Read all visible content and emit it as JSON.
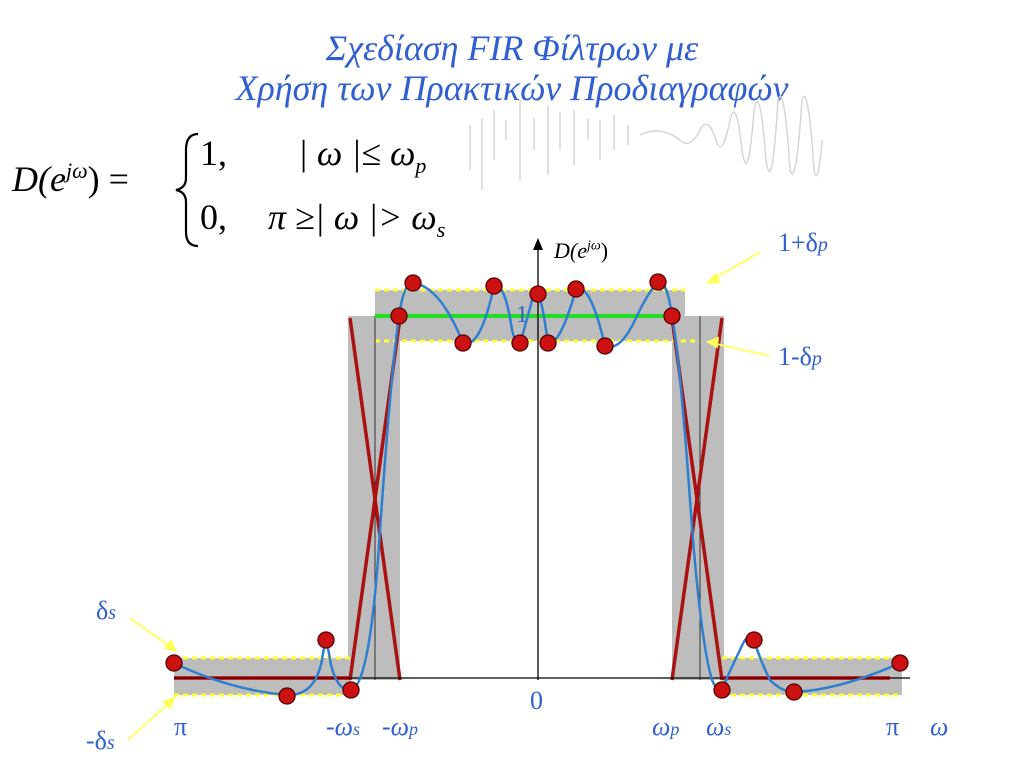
{
  "title": {
    "line1": "Σχεδίαση  FIR Φίλτρων με",
    "line2": "Χρήση των  Πρακτικών Προδιαγραφών"
  },
  "formula": {
    "lhs": "D(e",
    "lhs_sup": "jω",
    "lhs_end": ") =",
    "case1_value": "1,",
    "case1_cond": "| ω |≤ ω",
    "case1_sub": "p",
    "case2_value": "0,",
    "case2_cond": "π ≥| ω |> ω",
    "case2_sub": "s"
  },
  "axis": {
    "ylabel": "D(e",
    "ylabel_sup": "jω",
    "ylabel_end": ")",
    "one_label": "1",
    "zero_label": "0"
  },
  "annotations": {
    "upper_pass": "1+δ",
    "upper_pass_sub": "p",
    "lower_pass": "1-δ",
    "lower_pass_sub": "p",
    "stop_pos": "δ",
    "stop_pos_sub": "s",
    "stop_neg": "-δ",
    "stop_neg_sub": "s"
  },
  "ticks": {
    "left_pi": "π",
    "neg_ws": "-ω",
    "neg_ws_sub": "s",
    "neg_wp": "-ω",
    "neg_wp_sub": "p",
    "wp": "ω",
    "wp_sub": "p",
    "ws": "ω",
    "ws_sub": "s",
    "right_pi": "π",
    "omega": "ω"
  },
  "colors": {
    "title": "#2f5fd0",
    "band": "#bdbdbd",
    "tolerance": "#ffff33",
    "ideal_pass": "#22dd22",
    "ideal_stop": "#dd2222",
    "transition_lines": "#aa1111",
    "response": "#2f7fd0",
    "extrema": "#cc1111",
    "arrows": "#ffff55"
  }
}
